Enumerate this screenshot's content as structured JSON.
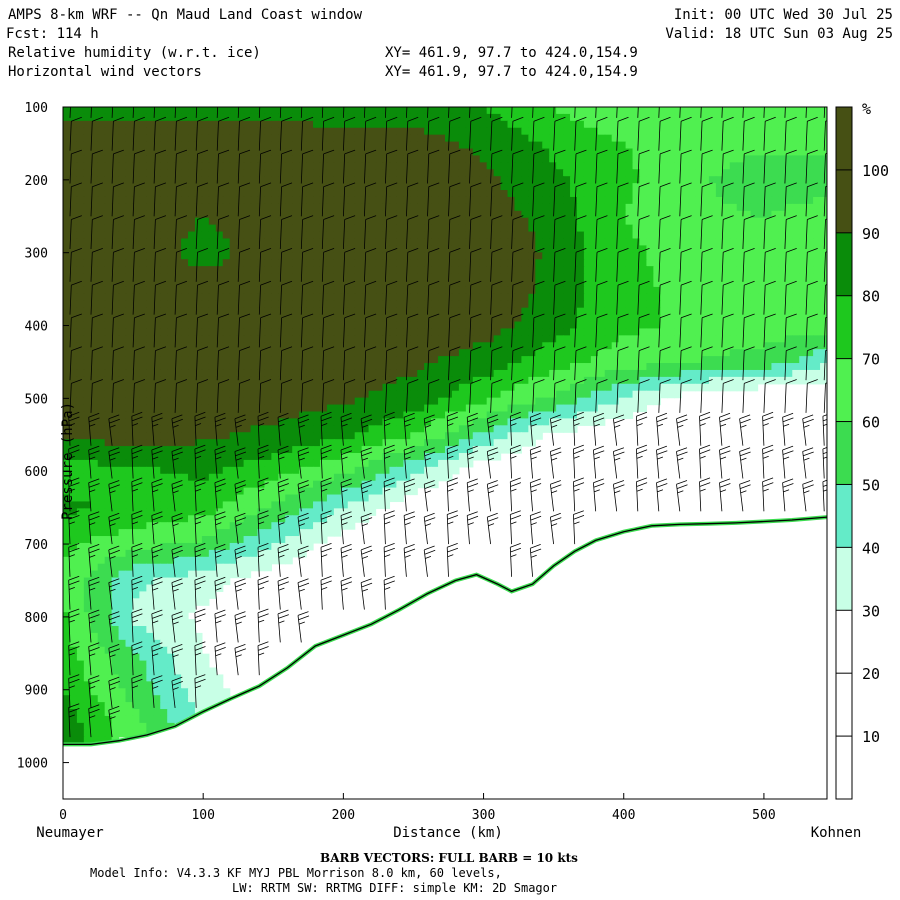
{
  "header": {
    "title": "AMPS 8-km WRF -- Qn Maud Land Coast window",
    "forecast": "Fcst:  114 h",
    "init": "Init: 00 UTC Wed 30 Jul 25",
    "valid": "Valid: 18 UTC Sun 03 Aug 25",
    "field1": "Relative humidity (w.r.t. ice)",
    "field2": "Horizontal wind vectors",
    "xy1": "XY= 461.9, 97.7 to 424.0,154.9",
    "xy2": "XY= 461.9, 97.7 to 424.0,154.9"
  },
  "footer": {
    "barb_note": "BARB VECTORS:  FULL BARB = 10 kts",
    "model_info": "Model Info: V4.3.3   KF      MYJ PBL  Morrison          8.0 km,  60 levels,",
    "physics": "LW: RRTM SW: RRTMG   DIFF: simple KM: 2D Smagor"
  },
  "colors": {
    "rh_bins": [
      "#ffffff",
      "#ffffff",
      "#ffffff",
      "#c8ffe6",
      "#64ebc8",
      "#3cdc50",
      "#50f050",
      "#1ec81e",
      "#0a8c0a",
      "#465014"
    ],
    "terrain": "#ffffff",
    "barb": "#000000"
  },
  "chart_data": {
    "type": "heatmap",
    "title": "Relative humidity (w.r.t. ice)",
    "xlabel": "Distance (km)",
    "ylabel": "Pressure (hPa)",
    "xlim": [
      0,
      545
    ],
    "ylim": [
      1050,
      100
    ],
    "x_ticks": [
      0,
      100,
      200,
      300,
      400,
      500
    ],
    "y_ticks": [
      100,
      200,
      300,
      400,
      500,
      600,
      700,
      800,
      900,
      1000
    ],
    "x_endpoint_labels": [
      "Neumayer",
      "Kohnen"
    ],
    "colorbar": {
      "unit": "%",
      "ticks": [
        10,
        20,
        30,
        40,
        50,
        60,
        70,
        80,
        90,
        100
      ],
      "range": [
        0,
        110
      ]
    },
    "terrain_surface": {
      "x": [
        0,
        20,
        40,
        60,
        80,
        100,
        120,
        140,
        160,
        180,
        200,
        220,
        240,
        260,
        280,
        295,
        310,
        320,
        335,
        350,
        365,
        380,
        400,
        420,
        440,
        460,
        480,
        500,
        520,
        545
      ],
      "pressure": [
        975,
        975,
        970,
        962,
        950,
        930,
        912,
        895,
        870,
        840,
        825,
        810,
        790,
        768,
        750,
        742,
        755,
        765,
        755,
        730,
        710,
        695,
        683,
        675,
        673,
        672,
        671,
        669,
        667,
        663
      ]
    },
    "rh_field": {
      "x": [
        0,
        50,
        100,
        150,
        200,
        250,
        300,
        350,
        400,
        450,
        500,
        545
      ],
      "pressure": [
        100,
        150,
        200,
        250,
        300,
        350,
        400,
        450,
        500,
        550,
        600,
        650,
        700,
        750,
        800,
        850,
        900,
        950
      ],
      "values": [
        [
          85,
          86,
          86,
          86,
          85,
          85,
          80,
          70,
          60,
          60,
          60,
          60
        ],
        [
          98,
          96,
          95,
          95,
          95,
          94,
          88,
          78,
          70,
          66,
          62,
          62
        ],
        [
          102,
          101,
          97,
          96,
          95,
          95,
          92,
          82,
          72,
          62,
          54,
          55
        ],
        [
          100,
          98,
          90,
          96,
          96,
          102,
          96,
          85,
          70,
          62,
          60,
          65
        ],
        [
          97,
          99,
          85,
          96,
          96,
          104,
          102,
          87,
          72,
          66,
          64,
          68
        ],
        [
          100,
          101,
          96,
          95,
          95,
          103,
          101,
          86,
          72,
          68,
          66,
          68
        ],
        [
          102,
          102,
          96,
          95,
          95,
          96,
          94,
          84,
          72,
          68,
          65,
          66
        ],
        [
          102,
          104,
          96,
          95,
          94,
          92,
          86,
          74,
          65,
          60,
          56,
          42
        ],
        [
          101,
          102,
          95,
          94,
          92,
          86,
          72,
          58,
          40,
          22,
          18,
          18
        ],
        [
          92,
          95,
          92,
          88,
          82,
          70,
          48,
          28,
          20,
          18,
          16,
          16
        ],
        [
          75,
          78,
          82,
          74,
          62,
          42,
          22,
          18,
          16,
          16,
          16,
          16
        ],
        [
          82,
          78,
          74,
          58,
          40,
          22,
          18,
          16,
          15,
          15,
          15,
          15
        ],
        [
          72,
          64,
          58,
          40,
          24,
          18,
          16,
          15,
          15,
          15,
          15,
          15
        ],
        [
          68,
          42,
          34,
          24,
          18,
          16,
          15,
          15,
          15,
          15,
          15,
          15
        ],
        [
          72,
          38,
          28,
          20,
          16,
          15,
          15,
          15,
          15,
          15,
          15,
          15
        ],
        [
          74,
          52,
          30,
          20,
          16,
          15,
          15,
          15,
          15,
          15,
          15,
          15
        ],
        [
          80,
          56,
          34,
          22,
          18,
          15,
          15,
          15,
          15,
          15,
          15,
          15
        ],
        [
          86,
          64,
          40,
          24,
          18,
          15,
          15,
          15,
          15,
          15,
          15,
          15
        ]
      ]
    },
    "wind_barbs": {
      "note": "BARB VECTORS:  FULL BARB = 10 kts",
      "columns_x": [
        5,
        20,
        35,
        50,
        65,
        80,
        95,
        110,
        125,
        140,
        155,
        170,
        185,
        200,
        215,
        230,
        245,
        260,
        275,
        290,
        305,
        320,
        335,
        350,
        365,
        380,
        395,
        410,
        425,
        440,
        455,
        470,
        485,
        500,
        515,
        530,
        543
      ],
      "levels_pressure": [
        115,
        160,
        205,
        250,
        295,
        340,
        385,
        430,
        475,
        520,
        565,
        610,
        655,
        700,
        745,
        790,
        835,
        880,
        925,
        965
      ],
      "speed_kts_upper": 10,
      "speed_kts_lower": 25
    }
  }
}
